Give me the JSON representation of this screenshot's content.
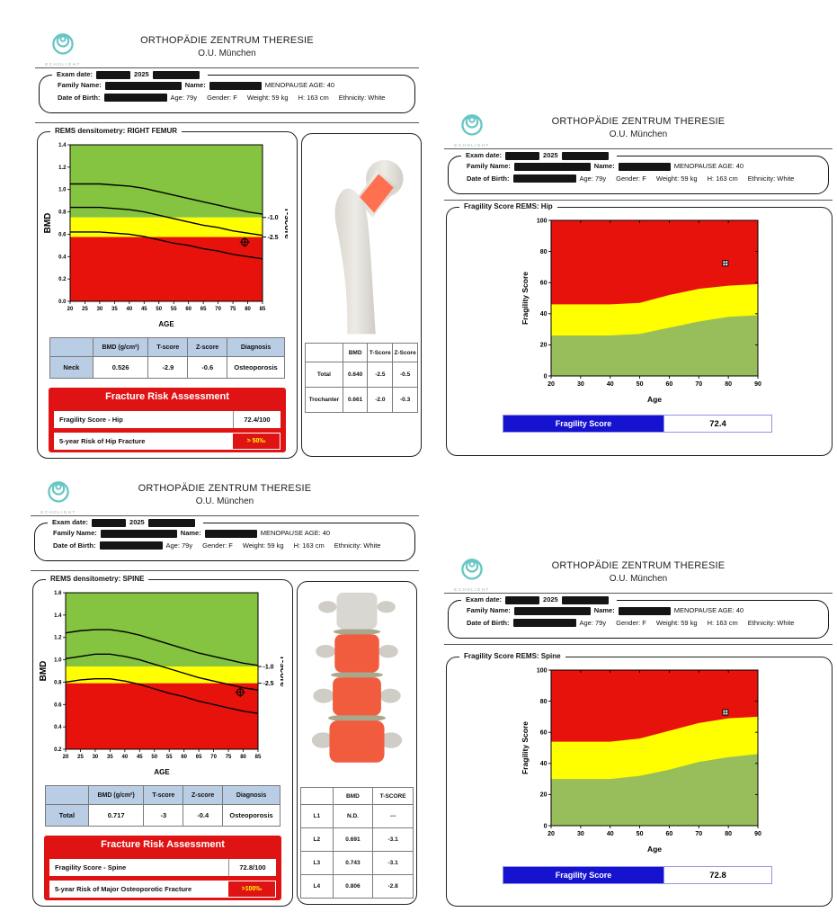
{
  "colors": {
    "band_green": "#84C440",
    "band_yellow": "#FFFF00",
    "band_red": "#E8120C",
    "frag_green": "#97BE5A",
    "frag_yellow": "#FFFF00",
    "frag_red": "#E8120C",
    "risk_red": "#DF1313",
    "risk_value_text": "#FFFF00",
    "score_blue": "#1512D0",
    "table_header_blue": "#B9CDE5",
    "logo_teal": "#66C6C3",
    "bone_highlight": "#FF7050"
  },
  "header": {
    "clinic_line1": "ORTHOPÄDIE ZENTRUM THERESIE",
    "clinic_line2": "O.U. München",
    "logo_label": "ECHOLIGHT",
    "exam_date_label": "Exam date:",
    "exam_year": "2025",
    "family_name_label": "Family Name:",
    "name_label": "Name:",
    "menopause_text": "MENOPAUSE AGE: 40",
    "dob_label": "Date of Birth:",
    "age": "Age: 79y",
    "gender": "Gender: F",
    "weight": "Weight: 59 kg",
    "height": "H: 163 cm",
    "ethnicity": "Ethnicity: White"
  },
  "femur": {
    "section_title": "REMS densitometry: RIGHT FEMUR",
    "main_table": {
      "headers": [
        "BMD (g/cm²)",
        "T-score",
        "Z-score",
        "Diagnosis"
      ],
      "row_label": "Neck",
      "row_values": [
        "0.526",
        "-2.9",
        "-0.6",
        "Osteoporosis"
      ]
    },
    "risk": {
      "title": "Fracture Risk Assessment",
      "row1_label": "Fragility Score - Hip",
      "row1_value": "72.4/100",
      "row2_label": "5-year Risk of Hip Fracture",
      "row2_value": "> 50‰"
    },
    "side_table": {
      "headers": [
        "BMD",
        "T-Score",
        "Z-Score"
      ],
      "rows": [
        {
          "label": "Total",
          "values": [
            "0.640",
            "-2.5",
            "-0.5"
          ]
        },
        {
          "label": "Trochanter",
          "values": [
            "0.661",
            "-2.0",
            "-0.3"
          ]
        }
      ]
    }
  },
  "spine": {
    "section_title": "REMS densitometry: SPINE",
    "main_table": {
      "headers": [
        "BMD (g/cm²)",
        "T-score",
        "Z-score",
        "Diagnosis"
      ],
      "row_label": "Total",
      "row_values": [
        "0.717",
        "-3",
        "-0.4",
        "Osteoporosis"
      ]
    },
    "risk": {
      "title": "Fracture Risk Assessment",
      "row1_label": "Fragility Score - Spine",
      "row1_value": "72.8/100",
      "row2_label": "5-year Risk of Major Osteoporotic Fracture",
      "row2_value": ">100‰"
    },
    "side_table": {
      "headers": [
        "BMD",
        "T-SCORE"
      ],
      "rows": [
        {
          "label": "L1",
          "values": [
            "N.D.",
            "---"
          ]
        },
        {
          "label": "L2",
          "values": [
            "0.691",
            "-3.1"
          ]
        },
        {
          "label": "L3",
          "values": [
            "0.743",
            "-3.1"
          ]
        },
        {
          "label": "L4",
          "values": [
            "0.806",
            "-2.8"
          ]
        }
      ]
    }
  },
  "frag_hip": {
    "section_title": "Fragility Score REMS: Hip",
    "score_label": "Fragility Score",
    "score_value": "72.4"
  },
  "frag_spine": {
    "section_title": "Fragility Score REMS: Spine",
    "score_label": "Fragility Score",
    "score_value": "72.8"
  },
  "chart_data": [
    {
      "svg_id": "chart-femur",
      "type": "line",
      "title": "REMS densitometry: RIGHT FEMUR",
      "xlabel": "AGE",
      "ylabel": "BMD",
      "y2label": "T-score",
      "xlim": [
        20,
        85
      ],
      "ylim": [
        0.0,
        1.4
      ],
      "xticks": [
        20,
        25,
        30,
        35,
        40,
        45,
        50,
        55,
        60,
        65,
        70,
        75,
        80,
        85
      ],
      "yticks": [
        0.0,
        0.2,
        0.4,
        0.6,
        0.8,
        1.0,
        1.2,
        1.4
      ],
      "grid": false,
      "zones": {
        "red_below": 0.575,
        "yellow_between": [
          0.575,
          0.75
        ],
        "green_above": 0.75
      },
      "t_marks": [
        {
          "label": "-1.0",
          "y": 0.75
        },
        {
          "label": "-2.5",
          "y": 0.575
        }
      ],
      "x": [
        20,
        25,
        30,
        35,
        40,
        45,
        50,
        55,
        60,
        65,
        70,
        75,
        80,
        85
      ],
      "series": [
        {
          "name": "reference_upper",
          "values": [
            1.05,
            1.05,
            1.05,
            1.04,
            1.03,
            1.01,
            0.98,
            0.95,
            0.92,
            0.89,
            0.86,
            0.83,
            0.8,
            0.78
          ]
        },
        {
          "name": "reference_median",
          "values": [
            0.84,
            0.84,
            0.84,
            0.83,
            0.82,
            0.8,
            0.77,
            0.74,
            0.71,
            0.68,
            0.66,
            0.63,
            0.61,
            0.59
          ]
        },
        {
          "name": "reference_lower",
          "values": [
            0.62,
            0.62,
            0.62,
            0.61,
            0.6,
            0.58,
            0.55,
            0.52,
            0.5,
            0.47,
            0.45,
            0.42,
            0.4,
            0.38
          ]
        }
      ],
      "patient_point": {
        "x": 79,
        "y": 0.53
      }
    },
    {
      "svg_id": "chart-spine",
      "type": "line",
      "title": "REMS densitometry: SPINE",
      "xlabel": "AGE",
      "ylabel": "BMD",
      "y2label": "T-score",
      "xlim": [
        20,
        85
      ],
      "ylim": [
        0.2,
        1.6
      ],
      "xticks": [
        20,
        25,
        30,
        35,
        40,
        45,
        50,
        55,
        60,
        65,
        70,
        75,
        80,
        85
      ],
      "yticks": [
        0.2,
        0.4,
        0.6,
        0.8,
        1.0,
        1.2,
        1.4,
        1.6
      ],
      "grid": false,
      "zones": {
        "red_below": 0.79,
        "yellow_between": [
          0.79,
          0.94
        ],
        "green_above": 0.94
      },
      "t_marks": [
        {
          "label": "-1.0",
          "y": 0.94
        },
        {
          "label": "-2.5",
          "y": 0.79
        }
      ],
      "x": [
        20,
        25,
        30,
        35,
        40,
        45,
        50,
        55,
        60,
        65,
        70,
        75,
        80,
        85
      ],
      "series": [
        {
          "name": "reference_upper",
          "values": [
            1.24,
            1.26,
            1.27,
            1.27,
            1.25,
            1.22,
            1.18,
            1.14,
            1.1,
            1.06,
            1.03,
            1.0,
            0.97,
            0.95
          ]
        },
        {
          "name": "reference_median",
          "values": [
            1.01,
            1.03,
            1.05,
            1.05,
            1.03,
            1.0,
            0.96,
            0.92,
            0.88,
            0.84,
            0.81,
            0.78,
            0.75,
            0.73
          ]
        },
        {
          "name": "reference_lower",
          "values": [
            0.8,
            0.82,
            0.83,
            0.83,
            0.81,
            0.78,
            0.74,
            0.7,
            0.67,
            0.63,
            0.6,
            0.57,
            0.54,
            0.52
          ]
        }
      ],
      "patient_point": {
        "x": 79,
        "y": 0.71
      }
    },
    {
      "svg_id": "chart-frag-hip",
      "type": "area",
      "title": "Fragility Score REMS: Hip",
      "xlabel": "Age",
      "ylabel": "Fragility Score",
      "xlim": [
        20,
        90
      ],
      "ylim": [
        0,
        100
      ],
      "xticks": [
        20,
        30,
        40,
        50,
        60,
        70,
        80,
        90
      ],
      "yticks": [
        0,
        20,
        40,
        60,
        80,
        100
      ],
      "grid": false,
      "x": [
        20,
        30,
        40,
        50,
        60,
        70,
        80,
        90
      ],
      "zones": {
        "green_top": [
          26,
          26,
          26,
          27,
          31,
          35,
          38,
          39
        ],
        "yellow_top": [
          46,
          46,
          46,
          47,
          52,
          56,
          58,
          59
        ],
        "red_above_yellow": true
      },
      "patient_point": {
        "x": 79,
        "y": 72.4
      }
    },
    {
      "svg_id": "chart-frag-spine",
      "type": "area",
      "title": "Fragility Score REMS: Spine",
      "xlabel": "Age",
      "ylabel": "Fragility Score",
      "xlim": [
        20,
        90
      ],
      "ylim": [
        0,
        100
      ],
      "xticks": [
        20,
        30,
        40,
        50,
        60,
        70,
        80,
        90
      ],
      "yticks": [
        0,
        20,
        40,
        60,
        80,
        100
      ],
      "grid": false,
      "x": [
        20,
        30,
        40,
        50,
        60,
        70,
        80,
        90
      ],
      "zones": {
        "green_top": [
          30,
          30,
          30,
          32,
          36,
          41,
          44,
          46
        ],
        "yellow_top": [
          54,
          54,
          54,
          56,
          61,
          66,
          69,
          70
        ],
        "red_above_yellow": true
      },
      "patient_point": {
        "x": 79,
        "y": 72.8
      }
    }
  ]
}
